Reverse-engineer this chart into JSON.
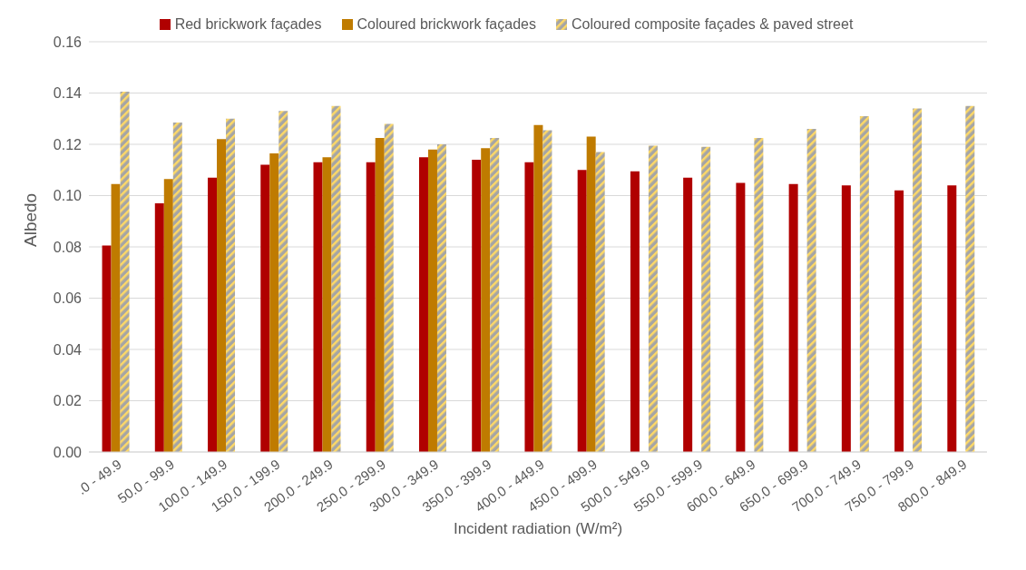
{
  "chart_data": {
    "type": "bar",
    "xlabel": "Incident radiation (W/m²)",
    "ylabel": "Albedo",
    "categories": [
      ".0 - 49.9",
      "50.0 - 99.9",
      "100.0 - 149.9",
      "150.0 - 199.9",
      "200.0 - 249.9",
      "250.0 - 299.9",
      "300.0 - 349.9",
      "350.0 - 399.9",
      "400.0 - 449.9",
      "450.0 - 499.9",
      "500.0 - 549.9",
      "550.0 - 599.9",
      "600.0 - 649.9",
      "650.0 - 699.9",
      "700.0 - 749.9",
      "750.0 - 799.9",
      "800.0 - 849.9"
    ],
    "series": [
      {
        "name": "Red brickwork façades",
        "color": "#b00000",
        "values": [
          0.0805,
          0.097,
          0.107,
          0.112,
          0.113,
          0.113,
          0.115,
          0.114,
          0.113,
          0.11,
          0.1095,
          0.107,
          0.105,
          0.1045,
          0.104,
          0.102,
          0.104
        ]
      },
      {
        "name": "Coloured brickwork façades",
        "color": "#bf7b00",
        "values": [
          0.1045,
          0.1065,
          0.122,
          0.1165,
          0.115,
          0.1225,
          0.118,
          0.1185,
          0.1275,
          0.123,
          null,
          null,
          null,
          null,
          null,
          null,
          null
        ]
      },
      {
        "name": "Coloured composite façades & paved street",
        "color": "#ffd966",
        "values": [
          0.1405,
          0.1285,
          0.13,
          0.133,
          0.135,
          0.128,
          0.12,
          0.1225,
          0.1255,
          0.117,
          0.1195,
          0.119,
          0.1225,
          0.126,
          0.131,
          0.134,
          0.135
        ]
      }
    ],
    "ylim": [
      0,
      0.16
    ],
    "yticks": [
      {
        "value": 0,
        "label": "0.00"
      },
      0.02,
      0.04,
      0.06,
      0.08,
      {
        "value": 0.1,
        "label": "0.10"
      },
      0.12,
      0.14,
      0.16
    ],
    "grid": "y",
    "legend": "top"
  }
}
